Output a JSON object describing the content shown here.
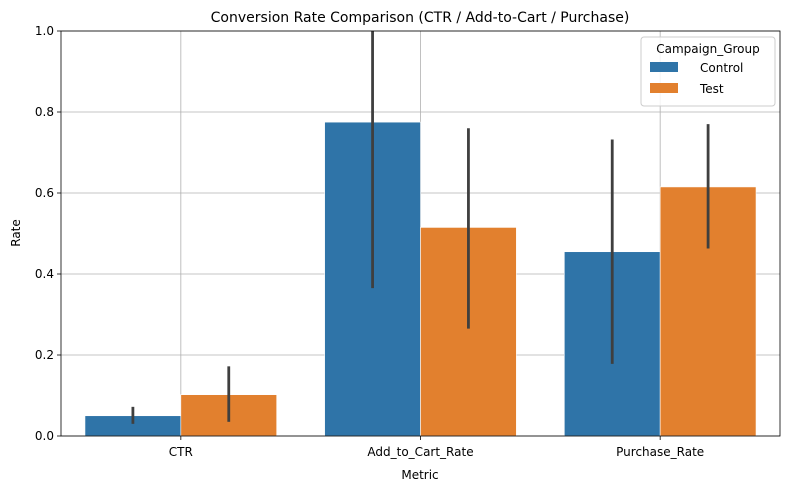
{
  "chart_data": {
    "type": "bar",
    "title": "Conversion Rate Comparison (CTR / Add-to-Cart / Purchase)",
    "xlabel": "Metric",
    "ylabel": "Rate",
    "categories": [
      "CTR",
      "Add_to_Cart_Rate",
      "Purchase_Rate"
    ],
    "ylim": [
      0,
      1.0
    ],
    "yticks": [
      0.0,
      0.2,
      0.4,
      0.6,
      0.8,
      1.0
    ],
    "ytick_labels": [
      "0.0",
      "0.2",
      "0.4",
      "0.6",
      "0.8",
      "1.0"
    ],
    "grid": true,
    "legend": {
      "title": "Campaign_Group",
      "placement": "top-right"
    },
    "series": [
      {
        "name": "Control",
        "color": "#2f74a8",
        "values": [
          0.05,
          0.775,
          0.455
        ],
        "error_low": [
          0.03,
          0.365,
          0.178
        ],
        "error_high": [
          0.072,
          1.0,
          0.732
        ]
      },
      {
        "name": "Test",
        "color": "#e2802e",
        "values": [
          0.102,
          0.515,
          0.615
        ],
        "error_low": [
          0.035,
          0.265,
          0.463
        ],
        "error_high": [
          0.172,
          0.76,
          0.77
        ]
      }
    ]
  }
}
